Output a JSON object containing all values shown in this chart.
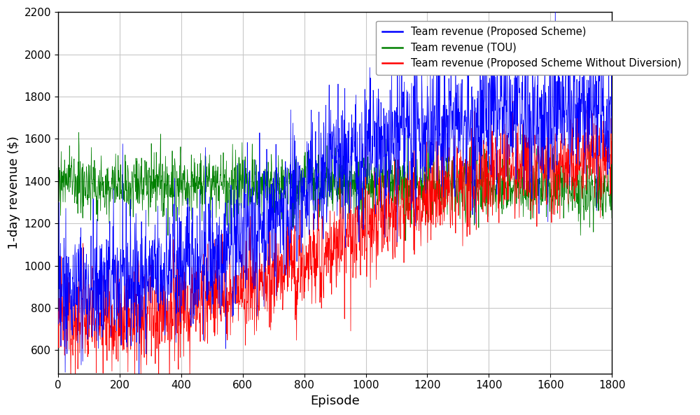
{
  "title": "",
  "xlabel": "Episode",
  "ylabel": "1-day revenue ($)",
  "xlim": [
    0,
    1800
  ],
  "ylim": [
    490,
    2200
  ],
  "yticks": [
    600,
    800,
    1000,
    1200,
    1400,
    1600,
    1800,
    2000,
    2200
  ],
  "xticks": [
    0,
    200,
    400,
    600,
    800,
    1000,
    1200,
    1400,
    1600,
    1800
  ],
  "n_episodes": 1800,
  "blue_label": "Team revenue (Proposed Scheme)",
  "green_label": "Team revenue (TOU)",
  "red_label": "Team revenue (Proposed Scheme Without Diversion)",
  "blue_color": "#0000FF",
  "green_color": "#008000",
  "red_color": "#FF0000",
  "linewidth": 0.55,
  "legend_fontsize": 10.5,
  "axis_fontsize": 13,
  "tick_fontsize": 11,
  "grid_color": "#c8c8c8",
  "background_color": "#ffffff",
  "seed": 42,
  "blue_start_mean": 870,
  "blue_end_mean": 1720,
  "blue_noise": 160,
  "green_mean": 1390,
  "green_noise": 70,
  "red_start_mean": 710,
  "red_end_mean": 1540,
  "red_noise": 110
}
